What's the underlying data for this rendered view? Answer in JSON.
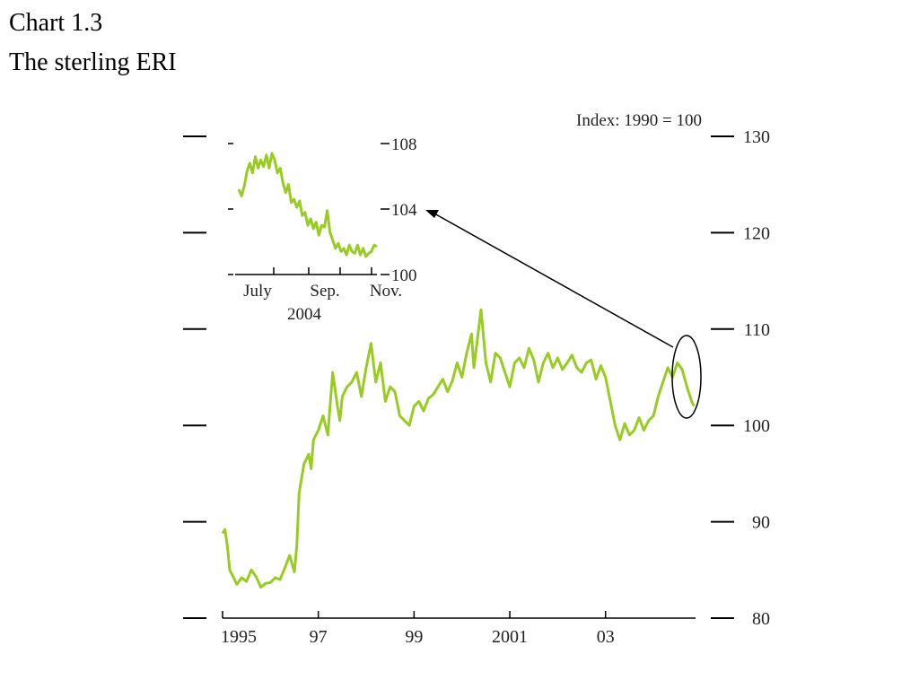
{
  "header": {
    "chart_number": "Chart 1.3",
    "title": "The sterling ERI"
  },
  "chart_data": [
    {
      "type": "line",
      "title": "The sterling ERI",
      "note": "Index:  1990 = 100",
      "x_range": [
        1995.0,
        2004.88
      ],
      "ylim": [
        80,
        130
      ],
      "y_ticks": [
        80,
        90,
        100,
        110,
        120,
        130
      ],
      "y_tick_labels": [
        "80",
        "90",
        "100",
        "110",
        "120",
        "130"
      ],
      "x_ticks": [
        1995,
        1997,
        1999,
        2001,
        2003
      ],
      "x_tick_labels": [
        "1995",
        "97",
        "99",
        "2001",
        "03"
      ],
      "grid": false,
      "line_color": "#99cc22",
      "series": [
        {
          "x": [
            1995.0,
            1995.05,
            1995.1,
            1995.15,
            1995.2,
            1995.3,
            1995.4,
            1995.5,
            1995.6,
            1995.7,
            1995.8,
            1995.9,
            1996.0,
            1996.1,
            1996.2,
            1996.3,
            1996.4,
            1996.5,
            1996.55,
            1996.6,
            1996.7,
            1996.8,
            1996.85,
            1996.9,
            1997.0,
            1997.1,
            1997.2,
            1997.3,
            1997.4,
            1997.45,
            1997.5,
            1997.6,
            1997.7,
            1997.8,
            1997.9,
            1998.0,
            1998.1,
            1998.2,
            1998.3,
            1998.4,
            1998.5,
            1998.6,
            1998.7,
            1998.8,
            1998.9,
            1999.0,
            1999.1,
            1999.2,
            1999.3,
            1999.4,
            1999.5,
            1999.6,
            1999.7,
            1999.8,
            1999.9,
            2000.0,
            2000.1,
            2000.2,
            2000.25,
            2000.3,
            2000.4,
            2000.5,
            2000.6,
            2000.7,
            2000.8,
            2000.9,
            2001.0,
            2001.1,
            2001.2,
            2001.3,
            2001.4,
            2001.5,
            2001.6,
            2001.7,
            2001.8,
            2001.9,
            2002.0,
            2002.1,
            2002.2,
            2002.3,
            2002.4,
            2002.5,
            2002.6,
            2002.7,
            2002.8,
            2002.9,
            2003.0,
            2003.1,
            2003.2,
            2003.3,
            2003.4,
            2003.5,
            2003.6,
            2003.7,
            2003.8,
            2003.9,
            2004.0,
            2004.1,
            2004.2,
            2004.3,
            2004.4,
            2004.5,
            2004.6,
            2004.7,
            2004.8,
            2004.85
          ],
          "y": [
            88.8,
            89.2,
            87.5,
            85.0,
            84.5,
            83.5,
            84.2,
            83.8,
            85.0,
            84.3,
            83.2,
            83.6,
            83.7,
            84.2,
            84.0,
            85.2,
            86.5,
            84.8,
            87.5,
            93.0,
            96.0,
            97.0,
            95.5,
            98.5,
            99.5,
            101.0,
            99.0,
            105.5,
            102.0,
            100.5,
            103.0,
            104.0,
            104.5,
            105.5,
            103.0,
            106.0,
            108.5,
            104.5,
            106.5,
            102.5,
            104.0,
            103.5,
            101.0,
            100.5,
            100.0,
            102.0,
            102.5,
            101.5,
            102.8,
            103.2,
            104.0,
            104.8,
            103.5,
            104.6,
            106.5,
            105.0,
            107.5,
            109.5,
            106.0,
            108.0,
            112.0,
            106.5,
            104.5,
            107.5,
            107.0,
            105.5,
            104.0,
            106.5,
            107.0,
            106.0,
            108.0,
            106.8,
            104.5,
            106.5,
            107.5,
            106.0,
            107.0,
            105.8,
            106.5,
            107.3,
            106.0,
            105.5,
            106.5,
            106.8,
            104.8,
            106.2,
            105.0,
            102.5,
            100.0,
            98.5,
            100.2,
            99.0,
            99.5,
            100.8,
            99.5,
            100.5,
            101.0,
            103.0,
            104.5,
            106.0,
            105.0,
            106.5,
            105.8,
            104.0,
            102.5,
            102.0
          ]
        }
      ],
      "highlight": "ellipse-around-2004",
      "inset": {
        "type": "line",
        "ylim": [
          100,
          109
        ],
        "y_ticks": [
          100,
          104,
          108
        ],
        "y_tick_labels": [
          "100",
          "104",
          "108"
        ],
        "x_tick_labels": [
          "July",
          "Sep.",
          "Nov."
        ],
        "year_label": "2004",
        "series": [
          {
            "x": [
              0.0,
              0.02,
              0.04,
              0.06,
              0.08,
              0.1,
              0.12,
              0.14,
              0.16,
              0.18,
              0.2,
              0.22,
              0.24,
              0.26,
              0.28,
              0.3,
              0.32,
              0.34,
              0.36,
              0.38,
              0.4,
              0.42,
              0.44,
              0.46,
              0.48,
              0.5,
              0.52,
              0.54,
              0.56,
              0.58,
              0.6,
              0.62,
              0.64,
              0.66,
              0.68,
              0.7,
              0.72,
              0.74,
              0.76,
              0.78,
              0.8,
              0.82,
              0.84,
              0.86,
              0.88,
              0.9,
              0.92,
              0.94,
              0.96,
              0.98,
              1.0
            ],
            "y": [
              105.2,
              104.8,
              105.4,
              106.3,
              106.8,
              106.2,
              107.2,
              106.5,
              107.0,
              106.6,
              107.3,
              106.5,
              107.4,
              107.0,
              106.2,
              106.5,
              105.6,
              105.0,
              105.5,
              104.4,
              104.6,
              104.1,
              104.5,
              103.6,
              103.8,
              103.0,
              103.4,
              102.8,
              103.2,
              102.4,
              103.0,
              102.9,
              103.9,
              102.6,
              102.1,
              101.6,
              101.9,
              101.4,
              101.6,
              101.2,
              101.8,
              101.4,
              101.3,
              101.8,
              101.2,
              101.6,
              101.1,
              101.3,
              101.4,
              101.8,
              101.7
            ]
          }
        ]
      }
    }
  ]
}
